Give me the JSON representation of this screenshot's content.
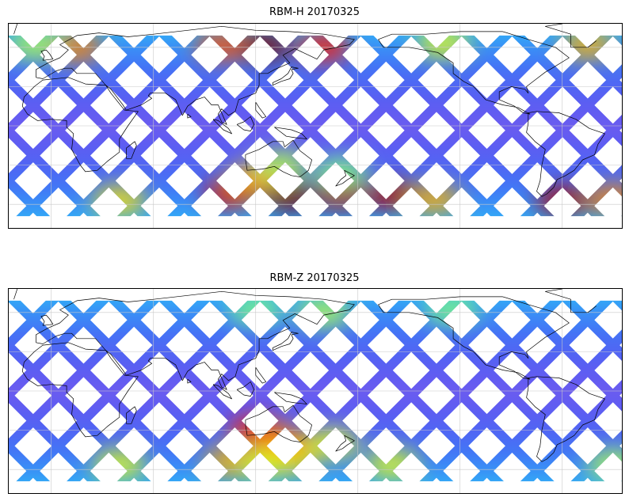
{
  "panels": [
    {
      "title": "RBM-H 20170325",
      "hotspots": [
        {
          "lon": -160,
          "lat": -53,
          "level": 0.95
        },
        {
          "lon": -135,
          "lat": -56,
          "level": 0.7
        },
        {
          "lon": -60,
          "lat": -57,
          "level": 0.95
        },
        {
          "lon": -30,
          "lat": -56,
          "level": 0.75
        },
        {
          "lon": 40,
          "lat": -57,
          "level": 0.65
        },
        {
          "lon": 105,
          "lat": -52,
          "level": 0.9
        },
        {
          "lon": 140,
          "lat": -54,
          "level": 1.0
        },
        {
          "lon": 170,
          "lat": -53,
          "level": 0.95
        },
        {
          "lon": 120,
          "lat": -40,
          "level": 0.7
        },
        {
          "lon": 135,
          "lat": -30,
          "level": 0.55
        },
        {
          "lon": 170,
          "lat": -35,
          "level": 0.5
        },
        {
          "lon": 15,
          "lat": 60,
          "level": 0.75
        },
        {
          "lon": -45,
          "lat": 62,
          "level": 0.7
        },
        {
          "lon": -130,
          "lat": 63,
          "level": 0.6
        },
        {
          "lon": 160,
          "lat": 60,
          "level": 0.85
        },
        {
          "lon": 125,
          "lat": 61,
          "level": 1.0
        },
        {
          "lon": 100,
          "lat": 61,
          "level": 0.8
        },
        {
          "lon": -10,
          "lat": 62,
          "level": 0.55
        }
      ]
    },
    {
      "title": "RBM-Z 20170325",
      "hotspots": [
        {
          "lon": -160,
          "lat": -56,
          "level": 0.6
        },
        {
          "lon": -30,
          "lat": -56,
          "level": 0.55
        },
        {
          "lon": 40,
          "lat": -56,
          "level": 0.6
        },
        {
          "lon": 105,
          "lat": -54,
          "level": 0.7
        },
        {
          "lon": 140,
          "lat": -52,
          "level": 0.65
        },
        {
          "lon": 120,
          "lat": -30,
          "level": 0.85
        },
        {
          "lon": 135,
          "lat": -38,
          "level": 0.75
        },
        {
          "lon": 165,
          "lat": -40,
          "level": 0.6
        },
        {
          "lon": 125,
          "lat": -55,
          "level": 0.6
        },
        {
          "lon": 160,
          "lat": 60,
          "level": 0.55
        },
        {
          "lon": -125,
          "lat": 62,
          "level": 0.5
        },
        {
          "lon": 120,
          "lat": 62,
          "level": 0.5
        }
      ]
    }
  ],
  "colors": {
    "baseline": "#6a5cf0",
    "ocean_bg": "#ffffff",
    "coast": "#000000",
    "grid": "#c8c8c8"
  }
}
